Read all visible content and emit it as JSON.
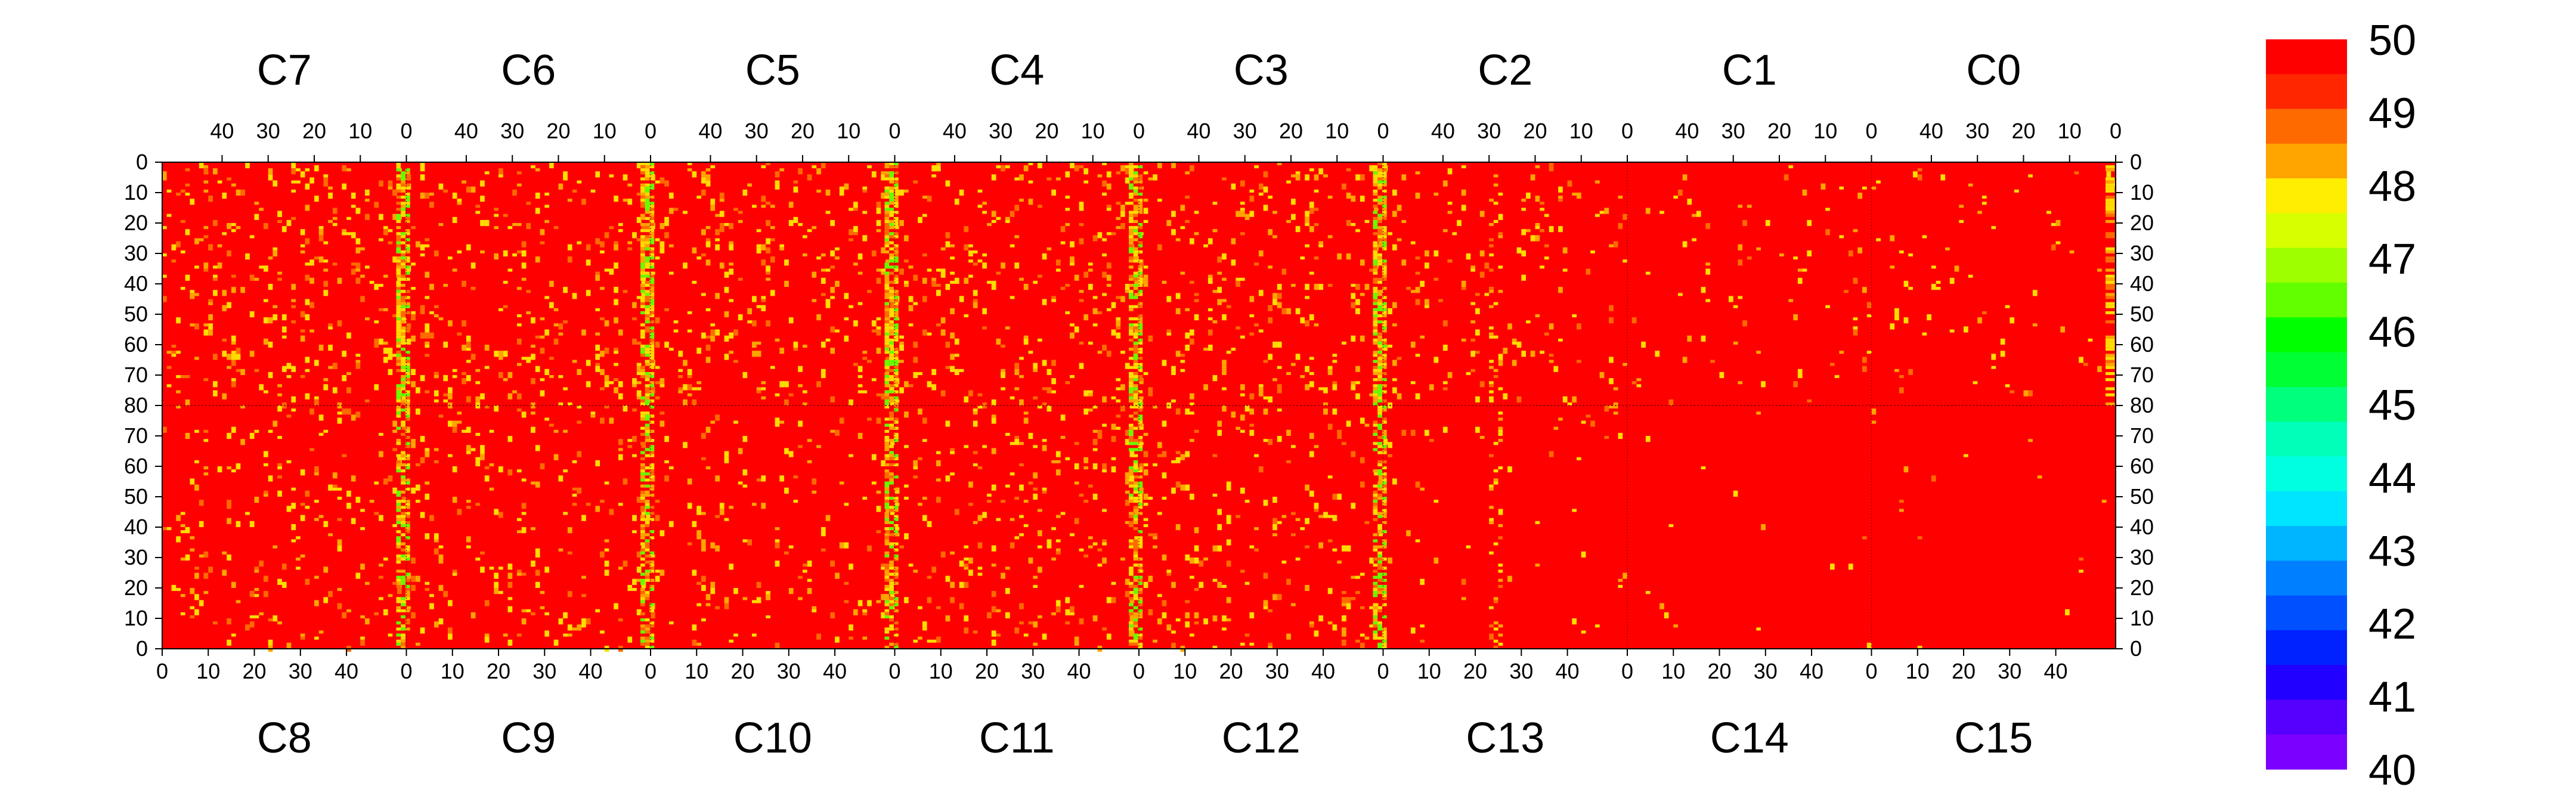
{
  "chart_data": {
    "type": "heatmap",
    "title": "",
    "xlabel": "",
    "ylabel": "",
    "top_chips": [
      "C7",
      "C6",
      "C5",
      "C4",
      "C3",
      "C2",
      "C1",
      "C0"
    ],
    "bottom_chips": [
      "C8",
      "C9",
      "C10",
      "C11",
      "C12",
      "C13",
      "C14",
      "C15"
    ],
    "columns_per_chip": 53,
    "rows_per_chip": 80,
    "top_axis_ticks": [
      "40",
      "30",
      "20",
      "10",
      "0"
    ],
    "bottom_axis_ticks": [
      "0",
      "10",
      "20",
      "30",
      "40"
    ],
    "y_axis_ticks_top_half": [
      "0",
      "10",
      "20",
      "30",
      "40",
      "50",
      "60",
      "70",
      "80"
    ],
    "y_axis_ticks_bottom_half": [
      "70",
      "60",
      "50",
      "40",
      "30",
      "20",
      "10",
      "0"
    ],
    "colorbar": {
      "min": 40,
      "max": 50,
      "tick_labels": [
        "50",
        "49",
        "48",
        "47",
        "46",
        "45",
        "44",
        "43",
        "42",
        "41",
        "40"
      ],
      "bands_top_to_bottom": [
        "#ff0000",
        "#ff2600",
        "#ff6a00",
        "#ffa500",
        "#ffee00",
        "#d8ff00",
        "#9dff00",
        "#62ff00",
        "#00ff00",
        "#00ff33",
        "#00ff7a",
        "#00ffb8",
        "#00ffe0",
        "#00e5ff",
        "#00b5ff",
        "#0080ff",
        "#0050ff",
        "#0022ff",
        "#2200ff",
        "#5500ff",
        "#7a00ff"
      ]
    },
    "typical_value": 50,
    "note_lowered_columns": [
      {
        "chip": "C7/C8",
        "near_column": 2
      },
      {
        "chip": "C6/C9",
        "near_column": 0
      },
      {
        "chip": "C5/C10",
        "near_column": 0
      },
      {
        "chip": "C4/C11",
        "near_column": 0
      },
      {
        "chip": "C3/C12",
        "near_column": 0
      },
      {
        "chip": "C2/C13",
        "near_column": 0
      }
    ],
    "colors": {
      "saturated": "#ff0000",
      "mid": "#ff6a00",
      "low": "#ffdd00",
      "very_low": "#66ff00"
    }
  }
}
